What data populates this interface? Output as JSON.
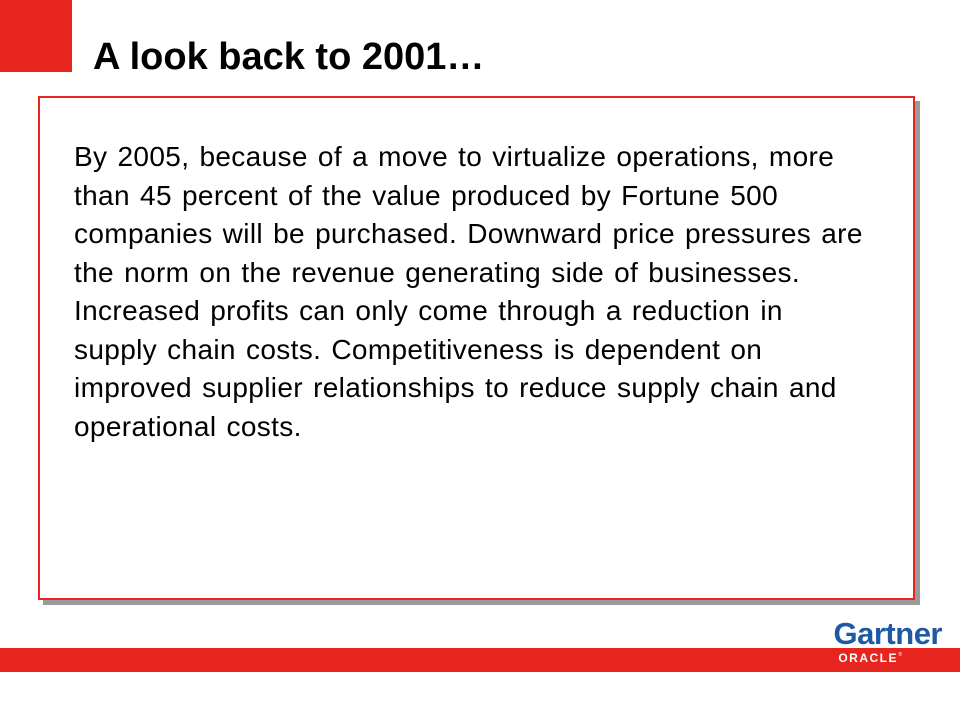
{
  "slide": {
    "title": "A look back to 2001…",
    "quote": "By 2005, because of a move to virtualize operations, more than 45 percent of the value produced by Fortune 500 companies will be purchased. Downward price pressures are the norm on the revenue generating side of businesses. Increased profits can only come through a reduction in supply chain costs. Competitiveness is dependent on improved supplier relationships to reduce supply chain and operational costs."
  },
  "branding": {
    "gartner_logo": "Gartner",
    "oracle_logo": "ORACLE"
  },
  "colors": {
    "accent_red": "#e8241e",
    "gartner_blue": "#1e5aa3",
    "box_shadow_gray": "#9a9a9a"
  }
}
